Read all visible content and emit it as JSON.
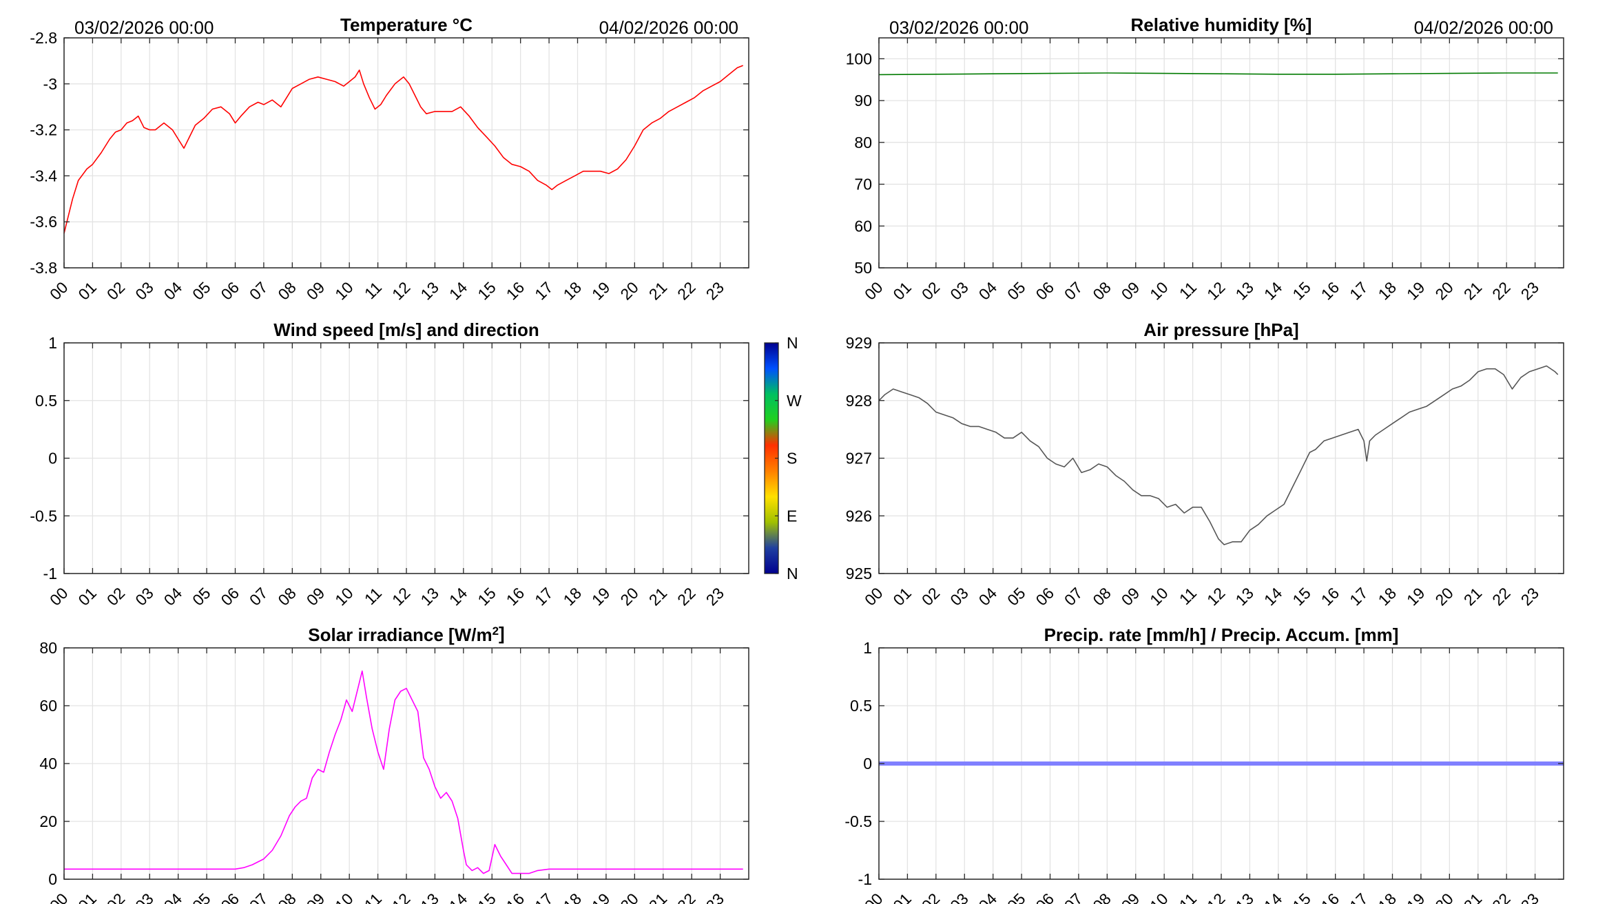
{
  "x_tick_labels": [
    "00",
    "01",
    "02",
    "03",
    "04",
    "05",
    "06",
    "07",
    "08",
    "09",
    "10",
    "11",
    "12",
    "13",
    "14",
    "15",
    "16",
    "17",
    "18",
    "19",
    "20",
    "21",
    "22",
    "23"
  ],
  "chart_data": [
    {
      "id": "temperature",
      "type": "line",
      "title": "Temperature °C",
      "date_start": "03/02/2026 00:00",
      "date_end": "04/02/2026 00:00",
      "xlabel": "",
      "ylabel": "",
      "xlim": [
        0,
        24
      ],
      "ylim": [
        -3.8,
        -2.8
      ],
      "yticks": [
        -3.8,
        -3.6,
        -3.4,
        -3.2,
        -3.0,
        -2.8
      ],
      "ytick_labels": [
        "-3.8",
        "-3.6",
        "-3.4",
        "-3.2",
        "-3",
        "-2.8"
      ],
      "grid": true,
      "color": "#ff0000",
      "series": [
        {
          "x": [
            0,
            0.1,
            0.3,
            0.5,
            0.8,
            1,
            1.3,
            1.6,
            1.8,
            2,
            2.2,
            2.4,
            2.6,
            2.8,
            3,
            3.2,
            3.5,
            3.8,
            4,
            4.2,
            4.4,
            4.6,
            4.9,
            5.2,
            5.5,
            5.8,
            6,
            6.2,
            6.5,
            6.8,
            7,
            7.3,
            7.6,
            7.8,
            8,
            8.3,
            8.6,
            8.9,
            9.2,
            9.5,
            9.8,
            10,
            10.2,
            10.35,
            10.5,
            10.7,
            10.9,
            11.1,
            11.3,
            11.6,
            11.9,
            12.1,
            12.3,
            12.5,
            12.7,
            13,
            13.3,
            13.6,
            13.9,
            14.2,
            14.5,
            14.8,
            15.1,
            15.4,
            15.7,
            16,
            16.3,
            16.6,
            16.9,
            17.1,
            17.3,
            17.6,
            17.9,
            18.2,
            18.5,
            18.8,
            19.1,
            19.4,
            19.7,
            20,
            20.3,
            20.6,
            20.9,
            21.2,
            21.5,
            21.8,
            22.1,
            22.4,
            22.7,
            23,
            23.3,
            23.6,
            23.8
          ],
          "y": [
            -3.65,
            -3.6,
            -3.5,
            -3.42,
            -3.37,
            -3.35,
            -3.3,
            -3.24,
            -3.21,
            -3.2,
            -3.17,
            -3.16,
            -3.14,
            -3.19,
            -3.2,
            -3.2,
            -3.17,
            -3.2,
            -3.24,
            -3.28,
            -3.23,
            -3.18,
            -3.15,
            -3.11,
            -3.1,
            -3.13,
            -3.17,
            -3.14,
            -3.1,
            -3.08,
            -3.09,
            -3.07,
            -3.1,
            -3.06,
            -3.02,
            -3.0,
            -2.98,
            -2.97,
            -2.98,
            -2.99,
            -3.01,
            -2.99,
            -2.97,
            -2.94,
            -3.0,
            -3.06,
            -3.11,
            -3.09,
            -3.05,
            -3.0,
            -2.97,
            -3.0,
            -3.05,
            -3.1,
            -3.13,
            -3.12,
            -3.12,
            -3.12,
            -3.1,
            -3.14,
            -3.19,
            -3.23,
            -3.27,
            -3.32,
            -3.35,
            -3.36,
            -3.38,
            -3.42,
            -3.44,
            -3.46,
            -3.44,
            -3.42,
            -3.4,
            -3.38,
            -3.38,
            -3.38,
            -3.39,
            -3.37,
            -3.33,
            -3.27,
            -3.2,
            -3.17,
            -3.15,
            -3.12,
            -3.1,
            -3.08,
            -3.06,
            -3.03,
            -3.01,
            -2.99,
            -2.96,
            -2.93,
            -2.92
          ]
        }
      ]
    },
    {
      "id": "humidity",
      "type": "line",
      "title": "Relative humidity [%]",
      "date_start": "03/02/2026 00:00",
      "date_end": "04/02/2026 00:00",
      "xlabel": "",
      "ylabel": "",
      "xlim": [
        0,
        24
      ],
      "ylim": [
        50,
        105
      ],
      "yticks": [
        50,
        60,
        70,
        80,
        90,
        100
      ],
      "ytick_labels": [
        "50",
        "60",
        "70",
        "80",
        "90",
        "100"
      ],
      "grid": true,
      "color": "#007a00",
      "series": [
        {
          "x": [
            0,
            2,
            4,
            6,
            8,
            10,
            12,
            14,
            16,
            18,
            20,
            22,
            23.8
          ],
          "y": [
            96.2,
            96.3,
            96.4,
            96.5,
            96.6,
            96.5,
            96.4,
            96.3,
            96.3,
            96.4,
            96.5,
            96.6,
            96.6
          ]
        }
      ]
    },
    {
      "id": "wind",
      "type": "scatter",
      "title": "Wind speed [m/s] and direction",
      "xlabel": "",
      "ylabel": "",
      "xlim": [
        0,
        24
      ],
      "ylim": [
        -1,
        1
      ],
      "yticks": [
        -1,
        -0.5,
        0,
        0.5,
        1
      ],
      "ytick_labels": [
        "-1",
        "-0.5",
        "0",
        "0.5",
        "1"
      ],
      "grid": true,
      "series": [],
      "colorbar": {
        "labels": [
          "N",
          "W",
          "S",
          "E",
          "N"
        ],
        "colors": [
          "#00008f",
          "#0050ff",
          "#00c060",
          "#20d020",
          "#ff3000",
          "#ff8000",
          "#ffe000",
          "#a0c000",
          "#2040a0",
          "#00008f"
        ]
      }
    },
    {
      "id": "pressure",
      "type": "line",
      "title": "Air pressure [hPa]",
      "xlabel": "",
      "ylabel": "",
      "xlim": [
        0,
        24
      ],
      "ylim": [
        925,
        929
      ],
      "yticks": [
        925,
        926,
        927,
        928,
        929
      ],
      "ytick_labels": [
        "925",
        "926",
        "927",
        "928",
        "929"
      ],
      "grid": true,
      "color": "#555555",
      "series": [
        {
          "x": [
            0,
            0.2,
            0.5,
            0.8,
            1.1,
            1.4,
            1.7,
            2,
            2.3,
            2.6,
            2.9,
            3.2,
            3.5,
            3.8,
            4.1,
            4.4,
            4.7,
            5,
            5.3,
            5.6,
            5.9,
            6.2,
            6.5,
            6.8,
            7.1,
            7.4,
            7.7,
            8,
            8.3,
            8.6,
            8.9,
            9.2,
            9.5,
            9.8,
            10.1,
            10.4,
            10.7,
            11,
            11.3,
            11.6,
            11.9,
            12.1,
            12.4,
            12.7,
            13,
            13.3,
            13.6,
            13.9,
            14.2,
            14.5,
            14.8,
            15.1,
            15.3,
            15.6,
            15.9,
            16.2,
            16.5,
            16.8,
            17,
            17.1,
            17.2,
            17.4,
            17.7,
            18,
            18.3,
            18.6,
            18.9,
            19.2,
            19.5,
            19.8,
            20.1,
            20.4,
            20.7,
            21,
            21.3,
            21.6,
            21.9,
            22.2,
            22.5,
            22.8,
            23.1,
            23.4,
            23.7,
            23.8
          ],
          "y": [
            928.0,
            928.1,
            928.2,
            928.15,
            928.1,
            928.05,
            927.95,
            927.8,
            927.75,
            927.7,
            927.6,
            927.55,
            927.55,
            927.5,
            927.45,
            927.35,
            927.35,
            927.45,
            927.3,
            927.2,
            927.0,
            926.9,
            926.85,
            927.0,
            926.75,
            926.8,
            926.9,
            926.85,
            926.7,
            926.6,
            926.45,
            926.35,
            926.35,
            926.3,
            926.15,
            926.2,
            926.05,
            926.15,
            926.15,
            925.9,
            925.6,
            925.5,
            925.55,
            925.55,
            925.75,
            925.85,
            926.0,
            926.1,
            926.2,
            926.5,
            926.8,
            927.1,
            927.15,
            927.3,
            927.35,
            927.4,
            927.45,
            927.5,
            927.3,
            926.95,
            927.3,
            927.4,
            927.5,
            927.6,
            927.7,
            927.8,
            927.85,
            927.9,
            928.0,
            928.1,
            928.2,
            928.25,
            928.35,
            928.5,
            928.55,
            928.55,
            928.45,
            928.2,
            928.4,
            928.5,
            928.55,
            928.6,
            928.5,
            928.45
          ]
        }
      ]
    },
    {
      "id": "solar",
      "type": "line",
      "title_main": "Solar irradiance [W/m",
      "title_sup": "2",
      "title_end": "]",
      "xlabel": "",
      "ylabel": "",
      "xlim": [
        0,
        24
      ],
      "ylim": [
        0,
        80
      ],
      "yticks": [
        0,
        20,
        40,
        60,
        80
      ],
      "ytick_labels": [
        "0",
        "20",
        "40",
        "60",
        "80"
      ],
      "grid": true,
      "color": "#ff00ff",
      "series": [
        {
          "x": [
            0,
            3,
            6,
            6.3,
            6.6,
            7,
            7.3,
            7.6,
            7.9,
            8.1,
            8.3,
            8.5,
            8.7,
            8.9,
            9.1,
            9.3,
            9.5,
            9.7,
            9.9,
            10.1,
            10.3,
            10.45,
            10.6,
            10.8,
            11,
            11.2,
            11.4,
            11.6,
            11.8,
            12,
            12.2,
            12.4,
            12.6,
            12.8,
            13,
            13.2,
            13.4,
            13.6,
            13.8,
            14,
            14.1,
            14.3,
            14.5,
            14.7,
            14.9,
            15.1,
            15.3,
            15.5,
            15.7,
            16,
            16.3,
            16.6,
            17,
            18,
            20,
            22,
            23.8
          ],
          "y": [
            3.5,
            3.5,
            3.5,
            4,
            5,
            7,
            10,
            15,
            22,
            25,
            27,
            28,
            35,
            38,
            37,
            44,
            50,
            55,
            62,
            58,
            66,
            72,
            63,
            52,
            44,
            38,
            52,
            62,
            65,
            66,
            62,
            58,
            42,
            38,
            32,
            28,
            30,
            27,
            21,
            10,
            5,
            3,
            4,
            2,
            3,
            12,
            8,
            5,
            2,
            2,
            2,
            3,
            3.5,
            3.5,
            3.5,
            3.5,
            3.5
          ]
        }
      ]
    },
    {
      "id": "precip",
      "type": "line",
      "title": "Precip. rate [mm/h] / Precip. Accum. [mm]",
      "xlabel": "",
      "ylabel": "",
      "xlim": [
        0,
        24
      ],
      "ylim": [
        -1,
        1
      ],
      "yticks": [
        -1,
        -0.5,
        0,
        0.5,
        1
      ],
      "ytick_labels": [
        "-1",
        "-0.5",
        "0",
        "0.5",
        "1"
      ],
      "grid": true,
      "color": "#8080ff",
      "series": [
        {
          "x": [
            0,
            24
          ],
          "y": [
            0,
            0
          ]
        }
      ]
    }
  ]
}
